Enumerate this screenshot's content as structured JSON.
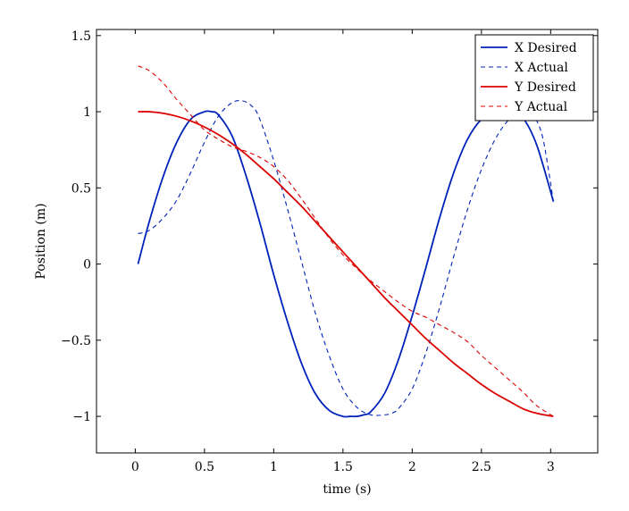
{
  "chart_data": {
    "type": "line",
    "xlabel": "time (s)",
    "ylabel": "Position (m)",
    "xlim": [
      -0.28,
      3.34
    ],
    "ylim": [
      -1.24,
      1.54
    ],
    "xticks": [
      0,
      0.5,
      1,
      1.5,
      2,
      2.5,
      3
    ],
    "xtick_labels": [
      "0",
      "0.5",
      "1",
      "1.5",
      "2",
      "2.5",
      "3"
    ],
    "yticks": [
      -1,
      -0.5,
      0,
      0.5,
      1,
      1.5
    ],
    "ytick_labels": [
      "−1",
      "−0.5",
      "0",
      "0.5",
      "1",
      "1.5"
    ],
    "grid": false,
    "legend_position": "top-right",
    "series": [
      {
        "name": "X Desired",
        "color": "#0022bb",
        "dash": "solid",
        "x": [
          0.02,
          0.1,
          0.2,
          0.3,
          0.4,
          0.5,
          0.55,
          0.6,
          0.7,
          0.8,
          0.9,
          1.0,
          1.1,
          1.2,
          1.3,
          1.4,
          1.5,
          1.55,
          1.6,
          1.65,
          1.7,
          1.8,
          1.9,
          2.0,
          2.1,
          2.2,
          2.3,
          2.4,
          2.5,
          2.6,
          2.7,
          2.72,
          2.8,
          2.9,
          3.02
        ],
        "y": [
          0.0,
          0.275,
          0.57,
          0.8,
          0.95,
          1.0,
          1.0,
          0.98,
          0.84,
          0.58,
          0.27,
          -0.07,
          -0.38,
          -0.65,
          -0.85,
          -0.96,
          -1.0,
          -1.0,
          -1.0,
          -0.99,
          -0.97,
          -0.85,
          -0.63,
          -0.34,
          -0.02,
          0.31,
          0.6,
          0.82,
          0.95,
          1.0,
          1.0,
          1.0,
          0.96,
          0.78,
          0.41
        ]
      },
      {
        "name": "X Actual",
        "color": "#0022bb",
        "dash": "dashed",
        "x": [
          0.02,
          0.1,
          0.2,
          0.3,
          0.4,
          0.5,
          0.6,
          0.7,
          0.78,
          0.85,
          0.9,
          1.0,
          1.1,
          1.2,
          1.3,
          1.4,
          1.5,
          1.6,
          1.7,
          1.8,
          1.85,
          1.9,
          2.0,
          2.1,
          2.2,
          2.3,
          2.4,
          2.5,
          2.6,
          2.7,
          2.8,
          2.85,
          2.9,
          2.95,
          3.02
        ],
        "y": [
          0.2,
          0.22,
          0.3,
          0.42,
          0.6,
          0.8,
          0.97,
          1.06,
          1.07,
          1.03,
          0.95,
          0.68,
          0.36,
          0.02,
          -0.32,
          -0.6,
          -0.82,
          -0.94,
          -0.99,
          -0.99,
          -0.98,
          -0.95,
          -0.82,
          -0.58,
          -0.28,
          0.05,
          0.36,
          0.62,
          0.82,
          0.95,
          1.01,
          1.0,
          0.94,
          0.8,
          0.41
        ]
      },
      {
        "name": "Y Desired",
        "color": "#dd0000",
        "dash": "solid",
        "x": [
          0.02,
          0.1,
          0.2,
          0.3,
          0.4,
          0.5,
          0.6,
          0.7,
          0.8,
          0.9,
          1.0,
          1.1,
          1.2,
          1.3,
          1.4,
          1.5,
          1.6,
          1.7,
          1.8,
          1.9,
          2.0,
          2.1,
          2.2,
          2.3,
          2.4,
          2.5,
          2.6,
          2.7,
          2.8,
          2.9,
          3.02
        ],
        "y": [
          1.0,
          1.0,
          0.99,
          0.97,
          0.94,
          0.9,
          0.85,
          0.79,
          0.72,
          0.64,
          0.56,
          0.47,
          0.38,
          0.28,
          0.18,
          0.08,
          -0.02,
          -0.12,
          -0.22,
          -0.31,
          -0.4,
          -0.49,
          -0.57,
          -0.65,
          -0.72,
          -0.79,
          -0.85,
          -0.9,
          -0.95,
          -0.98,
          -1.0
        ]
      },
      {
        "name": "Y Actual",
        "color": "#dd0000",
        "dash": "dashed",
        "x": [
          0.02,
          0.1,
          0.2,
          0.3,
          0.4,
          0.5,
          0.6,
          0.7,
          0.8,
          0.9,
          1.0,
          1.1,
          1.2,
          1.3,
          1.4,
          1.5,
          1.6,
          1.7,
          1.8,
          1.9,
          2.0,
          2.1,
          2.2,
          2.3,
          2.4,
          2.5,
          2.6,
          2.7,
          2.8,
          2.9,
          3.02
        ],
        "y": [
          1.3,
          1.27,
          1.19,
          1.08,
          0.98,
          0.88,
          0.82,
          0.77,
          0.74,
          0.7,
          0.64,
          0.55,
          0.43,
          0.3,
          0.17,
          0.06,
          -0.03,
          -0.11,
          -0.18,
          -0.25,
          -0.31,
          -0.35,
          -0.4,
          -0.45,
          -0.51,
          -0.6,
          -0.68,
          -0.76,
          -0.84,
          -0.93,
          -1.0
        ]
      }
    ]
  }
}
